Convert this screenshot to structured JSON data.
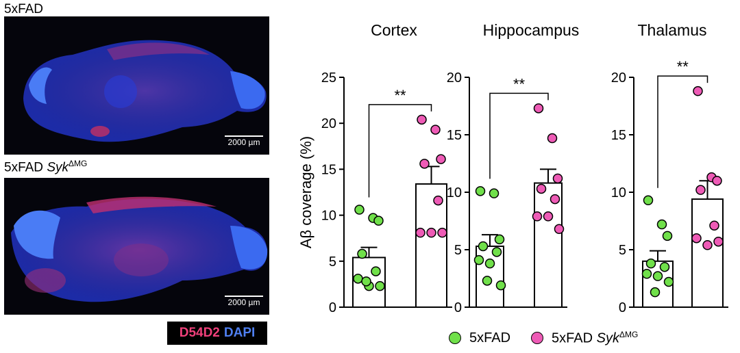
{
  "images": {
    "top_label": "5xFAD",
    "bottom_label_prefix": "5xFAD ",
    "bottom_label_gene": "Syk",
    "bottom_label_sup": "ΔMG",
    "scalebar_top": "2000 µm",
    "scalebar_bottom": "2000 µm",
    "stain_d54d2": "D54D2",
    "stain_dapi": "DAPI",
    "colors": {
      "d54d2": "#f0407a",
      "dapi": "#4f7ff0"
    }
  },
  "legend": {
    "item1": "5xFAD",
    "item2_prefix": "5xFAD ",
    "item2_gene": "Syk",
    "item2_sup": "ΔMG"
  },
  "chart_data": [
    {
      "type": "bar",
      "title": "Cortex",
      "ylabel": "Aβ coverage (%)",
      "ylim": [
        0,
        25
      ],
      "yticks": [
        "0",
        "5",
        "10",
        "15",
        "20",
        "25"
      ],
      "significance": "**",
      "series": [
        {
          "name": "5xFAD",
          "color": "#70e04a",
          "mean": 5.4,
          "sem": 1.1,
          "points": [
            10.6,
            9.7,
            9.4,
            5.8,
            3.9,
            3.1,
            2.3,
            2.3,
            2.8
          ]
        },
        {
          "name": "5xFAD SykΔMG",
          "color": "#ee5bb6",
          "mean": 13.4,
          "sem": 1.9,
          "points": [
            20.4,
            19.3,
            16.1,
            15.6,
            11.6,
            8.1,
            8.1,
            8.1
          ]
        }
      ]
    },
    {
      "type": "bar",
      "title": "Hippocampus",
      "ylim": [
        0,
        20
      ],
      "yticks": [
        "0",
        "5",
        "10",
        "15",
        "20"
      ],
      "significance": "**",
      "series": [
        {
          "name": "5xFAD",
          "color": "#70e04a",
          "mean": 5.3,
          "sem": 1.0,
          "points": [
            10.1,
            9.9,
            5.9,
            5.3,
            4.8,
            4.1,
            3.8,
            1.9,
            2.3
          ]
        },
        {
          "name": "5xFAD SykΔMG",
          "color": "#ee5bb6",
          "mean": 10.8,
          "sem": 1.2,
          "points": [
            17.3,
            14.7,
            11.2,
            10.3,
            9.4,
            7.9,
            7.9,
            6.8
          ]
        }
      ]
    },
    {
      "type": "bar",
      "title": "Thalamus",
      "ylim": [
        0,
        20
      ],
      "yticks": [
        "0",
        "5",
        "10",
        "15",
        "20"
      ],
      "significance": "**",
      "series": [
        {
          "name": "5xFAD",
          "color": "#70e04a",
          "mean": 4.0,
          "sem": 0.9,
          "points": [
            9.3,
            7.2,
            6.2,
            3.8,
            3.5,
            2.9,
            2.7,
            2.2,
            1.3
          ]
        },
        {
          "name": "5xFAD SykΔMG",
          "color": "#ee5bb6",
          "mean": 9.4,
          "sem": 1.6,
          "points": [
            18.8,
            11.3,
            11.0,
            10.2,
            7.1,
            6.0,
            5.4,
            5.7
          ]
        }
      ]
    }
  ]
}
